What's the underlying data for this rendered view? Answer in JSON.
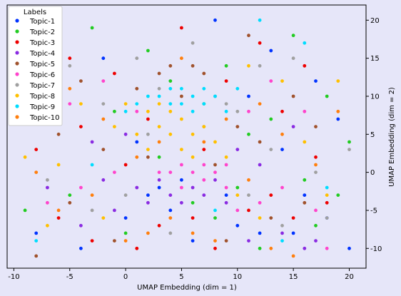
{
  "chart_data": {
    "type": "scatter",
    "title": "",
    "xlabel": "UMAP Embedding (dim = 1)",
    "ylabel": "UMAP Embedding (dim = 2)",
    "xlim": [
      -10.6,
      21.5
    ],
    "ylim": [
      -12.6,
      22.0
    ],
    "xticks": [
      -10,
      -5,
      0,
      5,
      10,
      15,
      20
    ],
    "yticks": [
      -10,
      -5,
      0,
      5,
      10,
      15,
      20
    ],
    "y_axis_side": "right",
    "grid": false,
    "legend": {
      "title": "Labels",
      "placement": "upper-left",
      "entries": [
        {
          "name": "Topic-1",
          "color": "#0033ff"
        },
        {
          "name": "Topic-2",
          "color": "#22cc22"
        },
        {
          "name": "Topic-3",
          "color": "#ee0000"
        },
        {
          "name": "Topic-4",
          "color": "#8a2be2"
        },
        {
          "name": "Topic-5",
          "color": "#a0522d"
        },
        {
          "name": "Topic-6",
          "color": "#ff44cc"
        },
        {
          "name": "Topic-7",
          "color": "#a0a0a0"
        },
        {
          "name": "Topic-8",
          "color": "#ffc000"
        },
        {
          "name": "Topic-9",
          "color": "#00ddff"
        },
        {
          "name": "Topic-10",
          "color": "#ff7f0e"
        }
      ]
    },
    "series": [
      {
        "name": "Topic-1",
        "color": "#0033ff",
        "points": [
          [
            -8,
            -8
          ],
          [
            -6,
            18
          ],
          [
            -4,
            -10
          ],
          [
            -2,
            15
          ],
          [
            0,
            -6
          ],
          [
            1,
            4
          ],
          [
            2,
            -3
          ],
          [
            3,
            -2
          ],
          [
            4,
            -5
          ],
          [
            5,
            -1
          ],
          [
            6,
            -9
          ],
          [
            8,
            20
          ],
          [
            9,
            -3
          ],
          [
            10,
            -7
          ],
          [
            11,
            10
          ],
          [
            12,
            -8
          ],
          [
            13,
            16
          ],
          [
            14,
            3
          ],
          [
            15,
            -8
          ],
          [
            16,
            -3
          ],
          [
            17,
            12
          ],
          [
            18,
            -6
          ],
          [
            19,
            7
          ],
          [
            20,
            -10
          ]
        ]
      },
      {
        "name": "Topic-2",
        "color": "#22cc22",
        "points": [
          [
            -9,
            -5
          ],
          [
            -7,
            10
          ],
          [
            -5,
            -3
          ],
          [
            -3,
            19
          ],
          [
            -1,
            8
          ],
          [
            0,
            -8
          ],
          [
            2,
            16
          ],
          [
            3,
            2
          ],
          [
            4,
            12
          ],
          [
            6,
            -4
          ],
          [
            7,
            9
          ],
          [
            8,
            -6
          ],
          [
            9,
            14
          ],
          [
            10,
            -2
          ],
          [
            11,
            5
          ],
          [
            12,
            -10
          ],
          [
            13,
            7
          ],
          [
            15,
            18
          ],
          [
            16,
            -1
          ],
          [
            17,
            -7
          ],
          [
            18,
            10
          ],
          [
            19,
            -3
          ],
          [
            20,
            4
          ]
        ]
      },
      {
        "name": "Topic-3",
        "color": "#ee0000",
        "points": [
          [
            -8,
            3
          ],
          [
            -6,
            -6
          ],
          [
            -5,
            15
          ],
          [
            -4,
            6
          ],
          [
            -3,
            -9
          ],
          [
            -1,
            13
          ],
          [
            0,
            1
          ],
          [
            1,
            -10
          ],
          [
            2,
            7
          ],
          [
            3,
            -7
          ],
          [
            5,
            19
          ],
          [
            6,
            -6
          ],
          [
            7,
            3
          ],
          [
            8,
            -10
          ],
          [
            9,
            12
          ],
          [
            11,
            -5
          ],
          [
            12,
            17
          ],
          [
            13,
            -3
          ],
          [
            14,
            8
          ],
          [
            15,
            -6
          ],
          [
            16,
            14
          ],
          [
            17,
            2
          ],
          [
            18,
            -4
          ]
        ]
      },
      {
        "name": "Topic-4",
        "color": "#8a2be2",
        "points": [
          [
            -7,
            -2
          ],
          [
            -6,
            8
          ],
          [
            -4,
            -7
          ],
          [
            -3,
            4
          ],
          [
            -2,
            -1
          ],
          [
            -1,
            -5
          ],
          [
            0,
            5
          ],
          [
            1,
            -2
          ],
          [
            2,
            -4
          ],
          [
            3,
            -1
          ],
          [
            4,
            -3
          ],
          [
            5,
            -4
          ],
          [
            6,
            -2
          ],
          [
            7,
            -3
          ],
          [
            8,
            -1
          ],
          [
            9,
            -4
          ],
          [
            10,
            3
          ],
          [
            11,
            -9
          ],
          [
            12,
            1
          ],
          [
            14,
            -8
          ],
          [
            15,
            6
          ],
          [
            16,
            -10
          ],
          [
            17,
            -9
          ]
        ]
      },
      {
        "name": "Topic-5",
        "color": "#a0522d",
        "points": [
          [
            -8,
            -11
          ],
          [
            -6,
            5
          ],
          [
            -5,
            -4
          ],
          [
            -4,
            12
          ],
          [
            -2,
            3
          ],
          [
            -1,
            -9
          ],
          [
            1,
            11
          ],
          [
            2,
            2
          ],
          [
            3,
            13
          ],
          [
            4,
            14
          ],
          [
            5,
            10
          ],
          [
            6,
            14
          ],
          [
            7,
            13
          ],
          [
            8,
            1
          ],
          [
            9,
            -9
          ],
          [
            10,
            6
          ],
          [
            11,
            18
          ],
          [
            12,
            4
          ],
          [
            13,
            -6
          ],
          [
            15,
            10
          ],
          [
            16,
            -4
          ],
          [
            17,
            6
          ]
        ]
      },
      {
        "name": "Topic-6",
        "color": "#ff44cc",
        "points": [
          [
            -7,
            -4
          ],
          [
            -5,
            9
          ],
          [
            -4,
            -2
          ],
          [
            -2,
            12
          ],
          [
            -1,
            0
          ],
          [
            1,
            8
          ],
          [
            3,
            0
          ],
          [
            4,
            0
          ],
          [
            5,
            1
          ],
          [
            5,
            -2
          ],
          [
            6,
            0
          ],
          [
            7,
            -1
          ],
          [
            7,
            1
          ],
          [
            8,
            0
          ],
          [
            9,
            1
          ],
          [
            9,
            -2
          ],
          [
            10,
            -5
          ],
          [
            11,
            8
          ],
          [
            12,
            -4
          ],
          [
            13,
            12
          ],
          [
            14,
            -2
          ],
          [
            16,
            8
          ],
          [
            17,
            -5
          ],
          [
            18,
            -10
          ]
        ]
      },
      {
        "name": "Topic-7",
        "color": "#a0a0a0",
        "points": [
          [
            -9,
            7
          ],
          [
            -7,
            -1
          ],
          [
            -5,
            14
          ],
          [
            -3,
            -5
          ],
          [
            -2,
            9
          ],
          [
            0,
            -3
          ],
          [
            1,
            15
          ],
          [
            2,
            5
          ],
          [
            3,
            11
          ],
          [
            4,
            -8
          ],
          [
            6,
            17
          ],
          [
            7,
            6
          ],
          [
            8,
            10
          ],
          [
            9,
            9
          ],
          [
            10,
            8
          ],
          [
            11,
            -3
          ],
          [
            12,
            14
          ],
          [
            13,
            3
          ],
          [
            14,
            -7
          ],
          [
            15,
            15
          ],
          [
            17,
            0
          ],
          [
            18,
            -6
          ],
          [
            20,
            3
          ]
        ]
      },
      {
        "name": "Topic-8",
        "color": "#ffc000",
        "points": [
          [
            -9,
            2
          ],
          [
            -7,
            -7
          ],
          [
            -6,
            1
          ],
          [
            -4,
            9
          ],
          [
            -2,
            -6
          ],
          [
            -1,
            6
          ],
          [
            0,
            9
          ],
          [
            1,
            5
          ],
          [
            2,
            8
          ],
          [
            2,
            3
          ],
          [
            3,
            6
          ],
          [
            3,
            9
          ],
          [
            4,
            5
          ],
          [
            4,
            8
          ],
          [
            5,
            3
          ],
          [
            5,
            7
          ],
          [
            6,
            5
          ],
          [
            6,
            2
          ],
          [
            7,
            6
          ],
          [
            8,
            4
          ],
          [
            9,
            2
          ],
          [
            10,
            -3
          ],
          [
            11,
            14
          ],
          [
            12,
            -6
          ],
          [
            14,
            12
          ],
          [
            16,
            4
          ],
          [
            18,
            -3
          ],
          [
            19,
            12
          ]
        ]
      },
      {
        "name": "Topic-9",
        "color": "#00ddff",
        "points": [
          [
            -8,
            -9
          ],
          [
            -6,
            13
          ],
          [
            -3,
            1
          ],
          [
            0,
            8
          ],
          [
            1,
            9
          ],
          [
            2,
            10
          ],
          [
            3,
            10
          ],
          [
            4,
            9
          ],
          [
            4,
            11
          ],
          [
            5,
            9
          ],
          [
            5,
            11
          ],
          [
            6,
            10
          ],
          [
            6,
            8
          ],
          [
            7,
            9
          ],
          [
            7,
            11
          ],
          [
            8,
            10
          ],
          [
            9,
            8
          ],
          [
            10,
            11
          ],
          [
            8,
            -5
          ],
          [
            12,
            20
          ],
          [
            14,
            -9
          ],
          [
            16,
            17
          ],
          [
            18,
            -2
          ]
        ]
      },
      {
        "name": "Topic-10",
        "color": "#ff7f0e",
        "points": [
          [
            -8,
            0
          ],
          [
            -6,
            -5
          ],
          [
            -5,
            11
          ],
          [
            -3,
            -3
          ],
          [
            -2,
            7
          ],
          [
            0,
            -9
          ],
          [
            1,
            2
          ],
          [
            2,
            -8
          ],
          [
            3,
            4
          ],
          [
            4,
            -6
          ],
          [
            5,
            15
          ],
          [
            6,
            -8
          ],
          [
            7,
            4
          ],
          [
            8,
            -9
          ],
          [
            9,
            7
          ],
          [
            11,
            -1
          ],
          [
            12,
            9
          ],
          [
            13,
            -10
          ],
          [
            14,
            5
          ],
          [
            15,
            -11
          ],
          [
            17,
            1
          ],
          [
            19,
            8
          ]
        ]
      }
    ]
  }
}
